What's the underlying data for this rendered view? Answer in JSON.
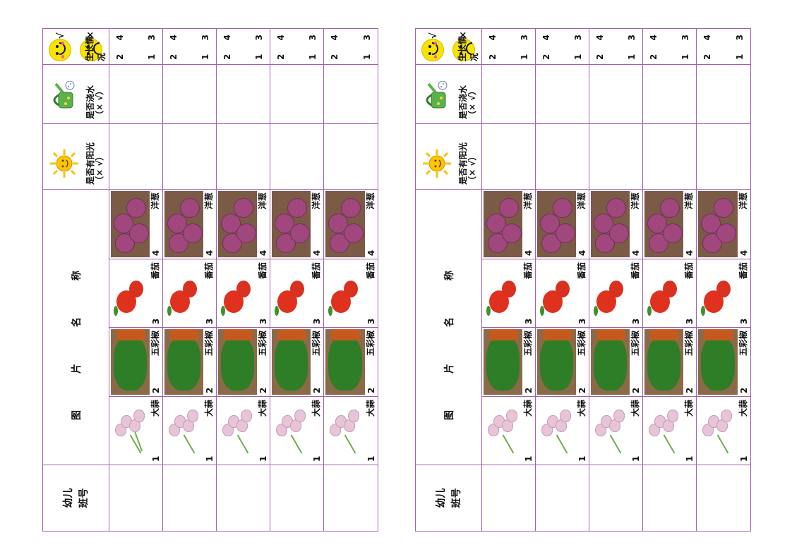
{
  "sheets": [
    {
      "child_header": [
        "幼儿",
        "班号"
      ],
      "pictures_header": "图片名称",
      "sunlight_header": [
        "是否有阳光",
        "（× √）"
      ],
      "water_header": [
        "是否浇水",
        "（× √）"
      ],
      "growth_header": {
        "label": "生长情况",
        "good_mark": "√",
        "bad_mark": "×"
      },
      "plants": [
        {
          "num": "1",
          "name": "大蒜",
          "icon": "garlic-photo"
        },
        {
          "num": "2",
          "name": "五彩椒",
          "icon": "pepper-photo"
        },
        {
          "num": "3",
          "name": "番茄",
          "icon": "tomato-photo"
        },
        {
          "num": "4",
          "name": "洋葱",
          "icon": "onion-photo"
        }
      ],
      "growth_values": [
        "1",
        "2",
        "3",
        "4"
      ],
      "row_count": 5
    },
    {
      "child_header": [
        "幼儿",
        "班号"
      ],
      "pictures_header": "图片名称",
      "sunlight_header": [
        "是否有阳光",
        "（× √）"
      ],
      "water_header": [
        "是否浇水",
        "（× √）"
      ],
      "growth_header": {
        "label": "生长情况",
        "good_mark": "√",
        "bad_mark": "×"
      },
      "plants": [
        {
          "num": "1",
          "name": "大蒜",
          "icon": "garlic-photo"
        },
        {
          "num": "2",
          "name": "五彩椒",
          "icon": "pepper-photo"
        },
        {
          "num": "3",
          "name": "番茄",
          "icon": "tomato-photo"
        },
        {
          "num": "4",
          "name": "洋葱",
          "icon": "onion-photo"
        }
      ],
      "growth_values": [
        "1",
        "2",
        "3",
        "4"
      ],
      "row_count": 5
    }
  ],
  "colors": {
    "border": "#a05fb0",
    "sun": "#f5c400",
    "can": "#5db14a",
    "face": "#f7e400"
  },
  "icons": {
    "sun": "sun-icon",
    "watering_can": "watering-can-icon",
    "happy": "smiley-happy-icon",
    "sad": "smiley-sad-icon"
  }
}
